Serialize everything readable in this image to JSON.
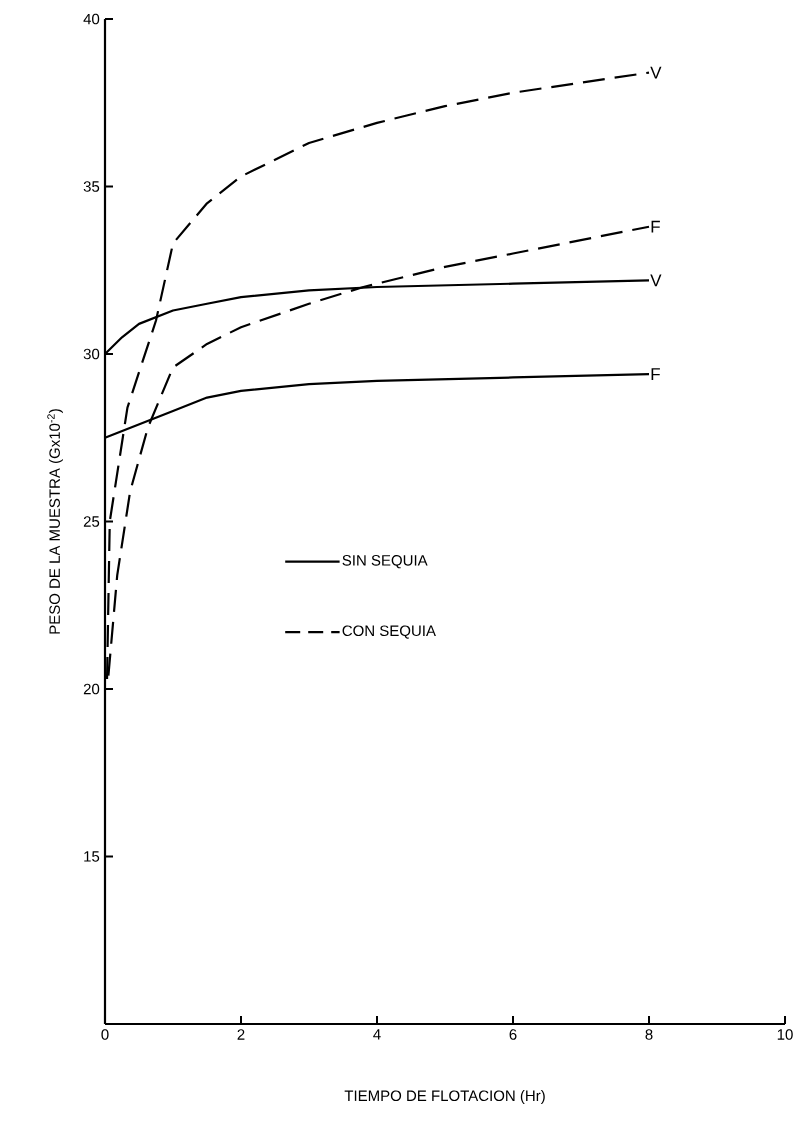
{
  "chart_data": {
    "type": "line",
    "xlabel": "TIEMPO DE FLOTACION (Hr)",
    "ylabel": "PESO DE LA MUESTRA (Gx10$^{-2}$)",
    "xlim": [
      0,
      10
    ],
    "ylim": [
      10,
      40
    ],
    "xticks": [
      0,
      2,
      4,
      6,
      8,
      10
    ],
    "yticks": [
      15,
      20,
      25,
      30,
      35,
      40
    ],
    "series": [
      {
        "name": "V",
        "color": "#000000",
        "line_style": "solid",
        "x": [
          0,
          0.25,
          0.5,
          1,
          1.5,
          2,
          3,
          4,
          6,
          8
        ],
        "values": [
          30.0,
          30.5,
          30.9,
          31.3,
          31.5,
          31.7,
          31.9,
          32.0,
          32.1,
          32.2
        ]
      },
      {
        "name": "F",
        "color": "#000000",
        "line_style": "solid",
        "x": [
          0,
          0.25,
          0.5,
          1,
          1.5,
          2,
          3,
          4,
          6,
          8
        ],
        "values": [
          27.5,
          27.7,
          27.9,
          28.3,
          28.7,
          28.9,
          29.1,
          29.2,
          29.3,
          29.4
        ]
      },
      {
        "name": "V",
        "color": "#000000",
        "line_style": "dashed",
        "x": [
          0.03,
          0.07,
          0.33,
          0.75,
          1,
          1.5,
          2,
          3,
          4,
          5,
          6,
          7,
          8
        ],
        "values": [
          20.3,
          25.0,
          28.4,
          31.0,
          33.3,
          34.5,
          35.3,
          36.3,
          36.9,
          37.4,
          37.8,
          38.1,
          38.4
        ]
      },
      {
        "name": "F",
        "color": "#000000",
        "line_style": "dashed",
        "x": [
          0.05,
          0.18,
          0.37,
          0.63,
          1,
          1.5,
          2,
          3,
          3.8,
          5,
          6,
          7,
          8
        ],
        "values": [
          20.4,
          23.4,
          25.9,
          27.8,
          29.6,
          30.3,
          30.8,
          31.5,
          32.0,
          32.6,
          33.0,
          33.4,
          33.8
        ]
      }
    ],
    "annotations": [
      "SIN SEQUIA",
      "CON SEQUIA"
    ]
  }
}
